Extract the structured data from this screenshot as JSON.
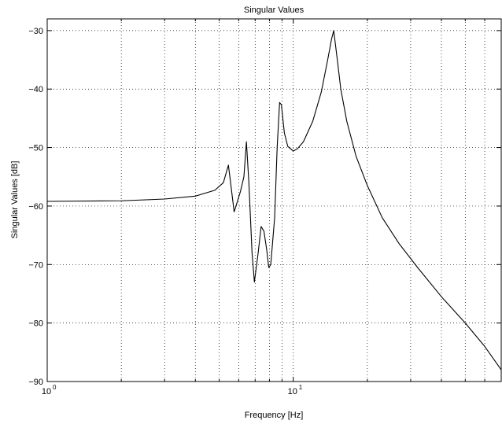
{
  "chart_data": {
    "type": "line",
    "title": "Singular Values",
    "xlabel": "Frequency [Hz]",
    "ylabel": "Singular Values [dB]",
    "x_scale": "log",
    "xlim": [
      1,
      70
    ],
    "ylim": [
      -90,
      -28
    ],
    "grid": true,
    "x_ticks": [
      {
        "value": 1,
        "base": "10",
        "exp": "0"
      },
      {
        "value": 10,
        "base": "10",
        "exp": "1"
      }
    ],
    "y_ticks": [
      {
        "value": -90,
        "label": "−90"
      },
      {
        "value": -80,
        "label": "−80"
      },
      {
        "value": -70,
        "label": "−70"
      },
      {
        "value": -60,
        "label": "−60"
      },
      {
        "value": -50,
        "label": "−50"
      },
      {
        "value": -40,
        "label": "−40"
      },
      {
        "value": -30,
        "label": "−30"
      }
    ],
    "series": [
      {
        "color": "#000000",
        "x": [
          1,
          2,
          3,
          4,
          4.8,
          5.2,
          5.45,
          5.6,
          5.75,
          5.9,
          6.1,
          6.3,
          6.45,
          6.6,
          6.8,
          6.95,
          7.2,
          7.4,
          7.6,
          7.8,
          7.95,
          8.1,
          8.4,
          8.6,
          8.8,
          8.95,
          9.2,
          9.5,
          10,
          10.4,
          11,
          12,
          13,
          13.8,
          14.3,
          14.6,
          14.9,
          15.2,
          15.6,
          16.5,
          18,
          20,
          23,
          27,
          32,
          40,
          50,
          60,
          70
        ],
        "y": [
          -59.2,
          -59.1,
          -58.8,
          -58.3,
          -57.3,
          -56,
          -53,
          -57,
          -61,
          -59.5,
          -57.5,
          -55,
          -49,
          -56,
          -68,
          -73,
          -68,
          -63.5,
          -64.3,
          -67.5,
          -70.5,
          -70,
          -62,
          -50,
          -42.3,
          -42.7,
          -47.5,
          -49.8,
          -50.6,
          -50.2,
          -49,
          -45.5,
          -40.5,
          -35,
          -31.5,
          -30,
          -33,
          -36,
          -40,
          -45.5,
          -51.5,
          -56.5,
          -62,
          -66.5,
          -70.5,
          -75.5,
          -80,
          -84,
          -88
        ]
      }
    ]
  }
}
